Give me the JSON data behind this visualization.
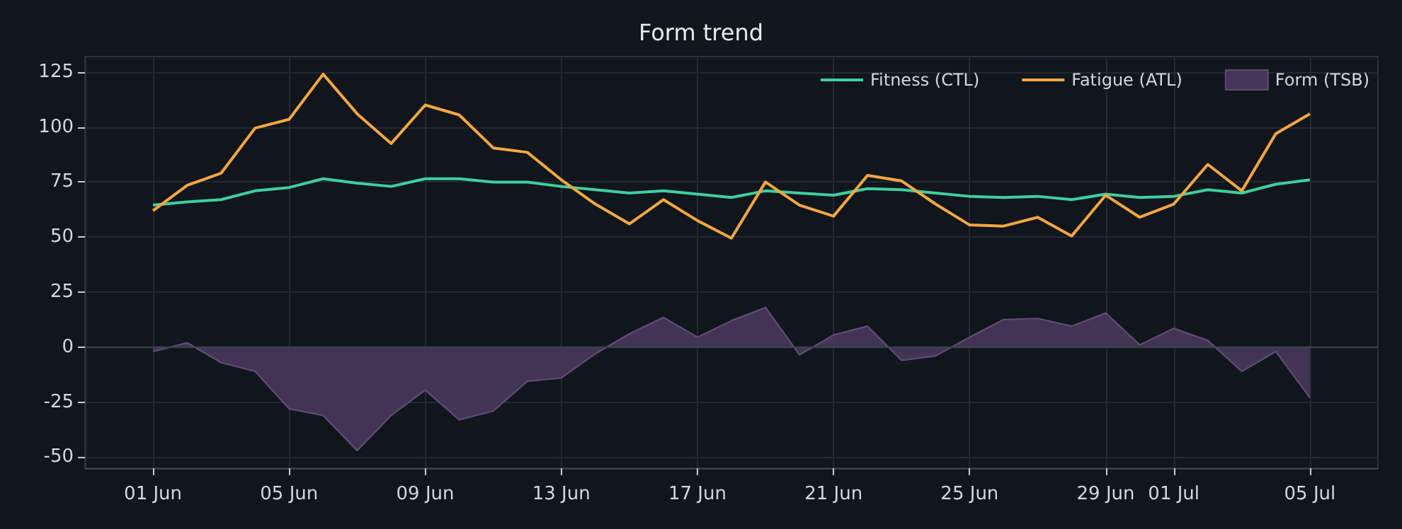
{
  "chart_data": {
    "type": "line",
    "title": "Form trend",
    "categories": [
      "01 Jun",
      null,
      null,
      null,
      "05 Jun",
      null,
      null,
      null,
      "09 Jun",
      null,
      null,
      null,
      "13 Jun",
      null,
      null,
      null,
      "17 Jun",
      null,
      null,
      null,
      "21 Jun",
      null,
      null,
      null,
      "25 Jun",
      null,
      null,
      null,
      "29 Jun",
      null,
      "01 Jul",
      null,
      null,
      null,
      "05 Jul"
    ],
    "series": [
      {
        "name": "Fitness (CTL)",
        "color": "#3ecf9e",
        "values": [
          64.5,
          66,
          67,
          71,
          72.5,
          76.5,
          74.5,
          73,
          76.5,
          76.5,
          75,
          75,
          73,
          71.5,
          70,
          71,
          69.5,
          68,
          71,
          70,
          69,
          72,
          71.5,
          70,
          68.5,
          68,
          68.5,
          67,
          69.5,
          68,
          68.5,
          71.5,
          70,
          74,
          76
        ]
      },
      {
        "name": "Fatigue (ATL)",
        "color": "#f5a742",
        "values": [
          62,
          73.5,
          79,
          99.5,
          103.5,
          124,
          106,
          92.5,
          110,
          105.5,
          90.5,
          88.5,
          76,
          65,
          56,
          67,
          57.5,
          49.5,
          75,
          64.5,
          59.5,
          78,
          75.5,
          65,
          55.5,
          55,
          59,
          50.5,
          69,
          59,
          65,
          83,
          71,
          97,
          106
        ]
      },
      {
        "name": "Form (TSB)",
        "type": "area",
        "color": "#463756",
        "values": [
          -2,
          2,
          -7,
          -11,
          -28,
          -31,
          -47,
          -31,
          -19.5,
          -33,
          -29,
          -15.5,
          -14,
          -3,
          6,
          13.5,
          4.5,
          12,
          18,
          -3.5,
          5.5,
          9.5,
          -6,
          -4,
          4.5,
          12.5,
          13,
          9.5,
          15.5,
          1,
          8.5,
          3,
          -11,
          -2,
          -23
        ]
      }
    ],
    "ylim": [
      -55,
      132
    ],
    "yticks": [
      -50,
      -25,
      0,
      25,
      50,
      75,
      100,
      125
    ],
    "ref_lines": [
      {
        "axis": "y",
        "value": 0,
        "color": "#3a3f4b"
      }
    ],
    "grid": true,
    "legend": "top right"
  }
}
